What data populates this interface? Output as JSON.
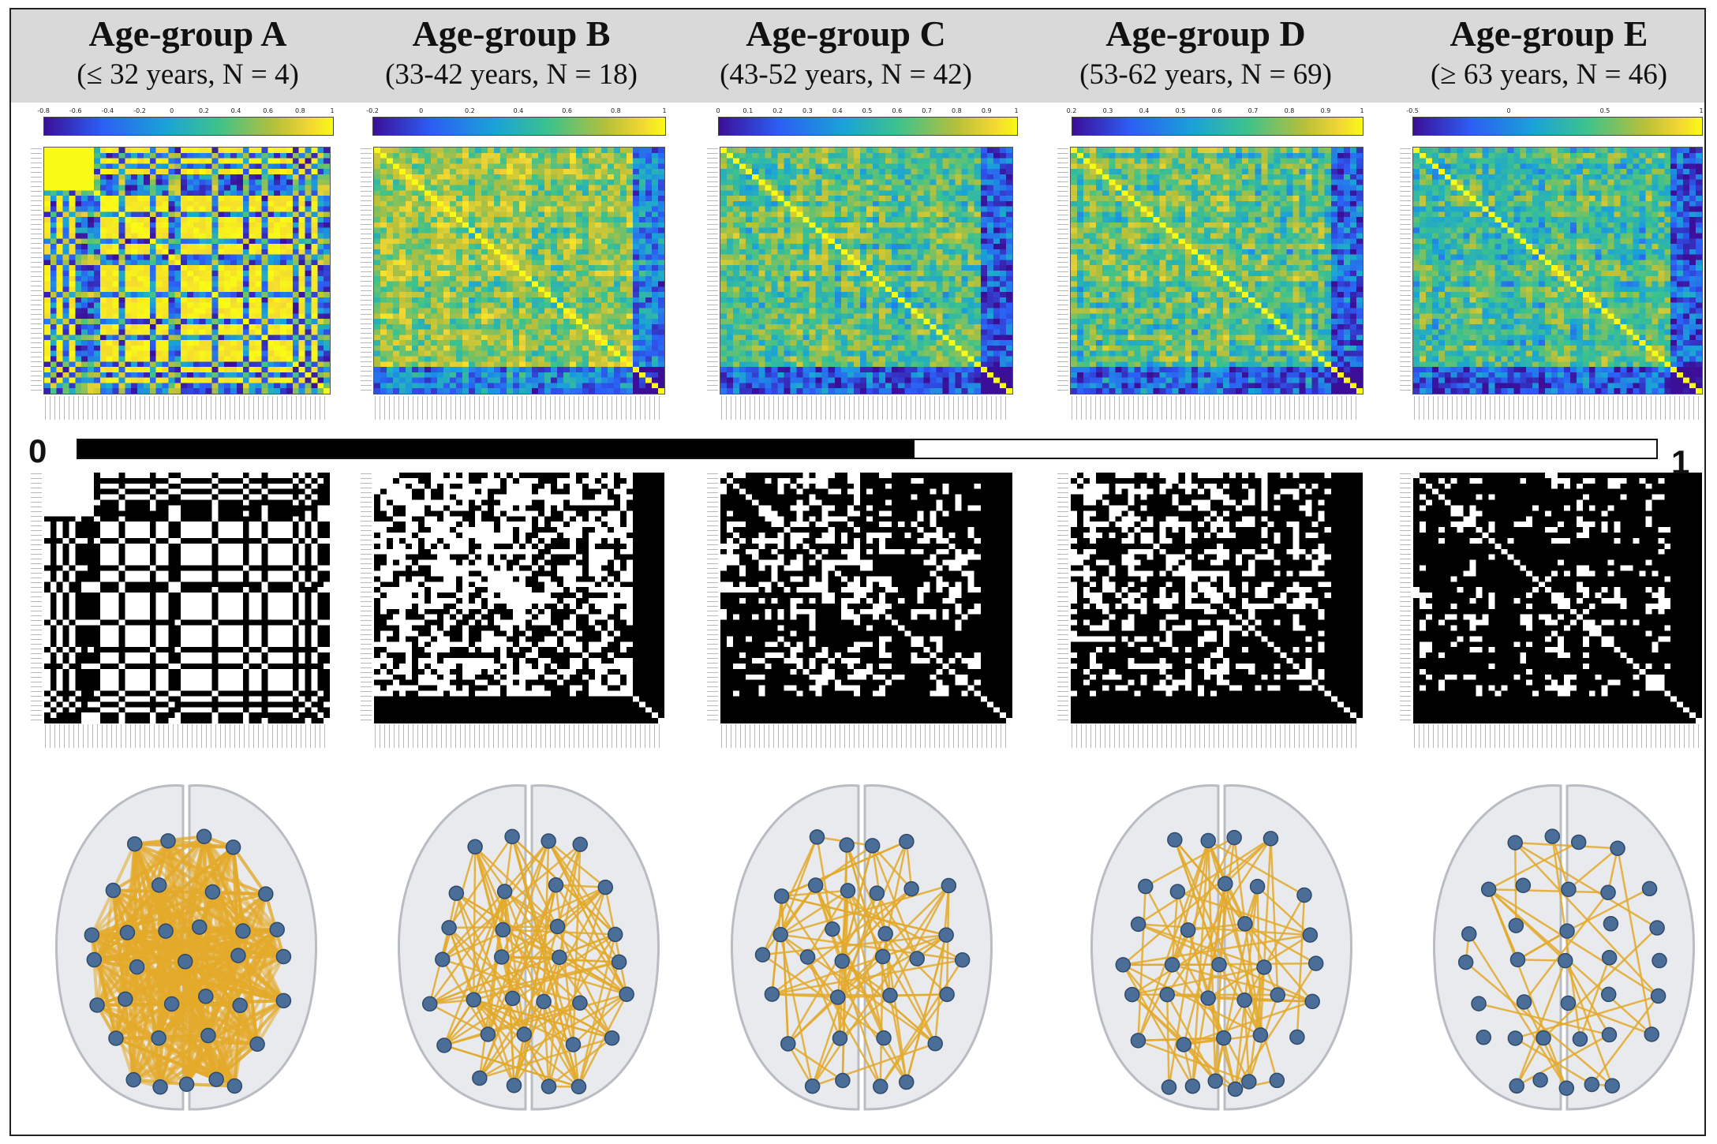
{
  "figure": {
    "groups": [
      {
        "id": "A",
        "title": "Age-group A",
        "subtitle": "(≤ 32 years, N = 4)",
        "colorbar_ticks": [
          "-0.8",
          "-0.6",
          "-0.4",
          "-0.2",
          "0",
          "0.2",
          "0.4",
          "0.6",
          "0.8",
          "1"
        ],
        "matrix_style": "blocky",
        "density": "very-high"
      },
      {
        "id": "B",
        "title": "Age-group B",
        "subtitle": "(33-42 years, N = 18)",
        "colorbar_ticks": [
          "-0.2",
          "0",
          "0.2",
          "0.4",
          "0.6",
          "0.8",
          "1"
        ],
        "matrix_style": "diagonal",
        "density": "high"
      },
      {
        "id": "C",
        "title": "Age-group C",
        "subtitle": "(43-52 years, N = 42)",
        "colorbar_ticks": [
          "0",
          "0.1",
          "0.2",
          "0.3",
          "0.4",
          "0.5",
          "0.6",
          "0.7",
          "0.8",
          "0.9",
          "1"
        ],
        "matrix_style": "diagonal",
        "density": "medium"
      },
      {
        "id": "D",
        "title": "Age-group D",
        "subtitle": "(53-62 years, N = 69)",
        "colorbar_ticks": [
          "0.2",
          "0.3",
          "0.4",
          "0.5",
          "0.6",
          "0.7",
          "0.8",
          "0.9",
          "1"
        ],
        "matrix_style": "diagonal",
        "density": "medium"
      },
      {
        "id": "E",
        "title": "Age-group E",
        "subtitle": "(≥ 63 years, N = 46)",
        "colorbar_ticks": [
          "-0.5",
          "0",
          "0.5",
          "1"
        ],
        "matrix_style": "diagonal",
        "density": "low"
      }
    ],
    "threshold_scale": {
      "min_label": "0",
      "max_label": "1",
      "fill_fraction": 0.53
    },
    "colors": {
      "edge": "#e3a92a",
      "node": "#4a6e98",
      "brain_fill": "#e4e6ea",
      "band": "#d9d9d9"
    }
  }
}
